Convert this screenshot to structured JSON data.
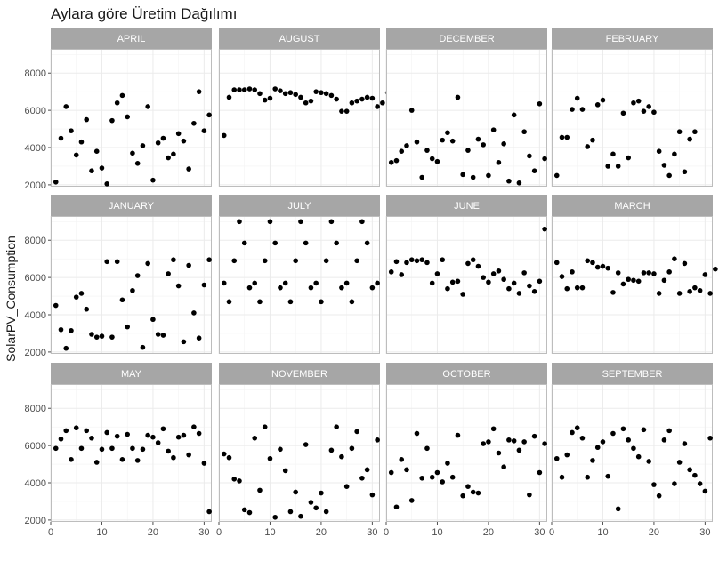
{
  "chart_data": {
    "type": "scatter",
    "title": "Aylara göre Üretim Dağılımı",
    "xlabel": "",
    "ylabel": "SolarPV_Consumption",
    "xlim": [
      0,
      31.5
    ],
    "ylim": [
      1900,
      9300
    ],
    "xticks": [
      0,
      10,
      20,
      30
    ],
    "yticks": [
      2000,
      4000,
      6000,
      8000
    ],
    "grid": true,
    "colors": {
      "strip": "#a6a6a6",
      "panel_border": "#bdbdbd",
      "grid": "#ebebeb",
      "point": "#000000"
    },
    "panels": [
      {
        "name": "APRIL",
        "values": [
          2150,
          4500,
          6200,
          4900,
          3600,
          4300,
          5500,
          2750,
          3800,
          2900,
          2050,
          5450,
          6400,
          6800,
          5650,
          3700,
          3150,
          4100,
          6200,
          2250,
          4250,
          4500,
          3450,
          3650,
          4750,
          4350,
          2850,
          5300,
          7000,
          4900,
          5750
        ]
      },
      {
        "name": "AUGUST",
        "values": [
          4650,
          6700,
          7100,
          7100,
          7100,
          7150,
          7100,
          6900,
          6550,
          6650,
          7150,
          7050,
          6900,
          6950,
          6850,
          6700,
          6400,
          6500,
          7000,
          6950,
          6900,
          6800,
          6600,
          5950,
          5950,
          6400,
          6500,
          6600,
          6700,
          6650,
          6200,
          6400,
          6950
        ]
      },
      {
        "name": "DECEMBER",
        "values": [
          3200,
          3300,
          3800,
          4100,
          6000,
          4300,
          2400,
          3850,
          3400,
          3250,
          4400,
          4800,
          4350,
          6700,
          2550,
          3850,
          2400,
          4450,
          4150,
          2500,
          4950,
          3200,
          4200,
          2200,
          5750,
          2100,
          4850,
          3550,
          2750,
          6350,
          3400
        ]
      },
      {
        "name": "FEBRUARY",
        "values": [
          2500,
          4550,
          4550,
          6050,
          6650,
          6050,
          4050,
          4400,
          6300,
          6550,
          3000,
          3650,
          3000,
          5850,
          3450,
          6400,
          6500,
          5950,
          6200,
          5900,
          3800,
          3050,
          2500,
          3650,
          4850,
          2700,
          4450,
          4850
        ]
      },
      {
        "name": "JANUARY",
        "values": [
          4500,
          3200,
          2200,
          3150,
          4950,
          5150,
          4300,
          2950,
          2800,
          2850,
          6850,
          2800,
          6850,
          4800,
          3350,
          5300,
          6100,
          2250,
          6750,
          3750,
          2950,
          2900,
          6200,
          6950,
          5550,
          2550,
          6650,
          4100,
          2750,
          5600,
          6950
        ]
      },
      {
        "name": "JULY",
        "values": [
          5700,
          4700,
          6900,
          9000,
          7850,
          5450,
          5700,
          4700,
          6900,
          9000,
          7850,
          5450,
          5700,
          4700,
          6900,
          9000,
          7850,
          5450,
          5700,
          4700,
          6900,
          9000,
          7850,
          5450,
          5700,
          4700,
          6900,
          9000,
          7850,
          5450,
          5700
        ]
      },
      {
        "name": "JUNE",
        "values": [
          6300,
          6850,
          6150,
          6800,
          6950,
          6900,
          6950,
          6800,
          5700,
          6200,
          6950,
          5400,
          5750,
          5800,
          5100,
          6750,
          6950,
          6600,
          6000,
          5750,
          6200,
          6350,
          5900,
          5400,
          5700,
          5150,
          6250,
          5550,
          5250,
          5800,
          8600
        ]
      },
      {
        "name": "MARCH",
        "values": [
          6800,
          6050,
          5400,
          6300,
          5450,
          5450,
          6900,
          6800,
          6550,
          6600,
          6500,
          5200,
          6250,
          5650,
          5900,
          5850,
          5800,
          6250,
          6250,
          6200,
          5150,
          5850,
          6300,
          7000,
          5150,
          6750,
          5250,
          5450,
          5300,
          6150,
          5150,
          6450
        ]
      },
      {
        "name": "MAY",
        "values": [
          5850,
          6350,
          6800,
          5250,
          6950,
          5850,
          6800,
          6400,
          5100,
          5800,
          6700,
          5850,
          6500,
          5250,
          6600,
          5850,
          5200,
          5800,
          6550,
          6450,
          6150,
          6900,
          5700,
          5350,
          6450,
          6550,
          5500,
          7000,
          6650,
          5050,
          2450
        ]
      },
      {
        "name": "NOVEMBER",
        "values": [
          5550,
          5350,
          4200,
          4100,
          2550,
          2400,
          6400,
          3600,
          7000,
          5300,
          2150,
          5800,
          4650,
          2450,
          3500,
          2200,
          6050,
          2950,
          2650,
          3450,
          2450,
          5750,
          7000,
          5400,
          3800,
          5850,
          6750,
          4250,
          4700,
          3350,
          6300
        ]
      },
      {
        "name": "OCTOBER",
        "values": [
          4550,
          2700,
          5250,
          4700,
          3050,
          6650,
          4250,
          5850,
          4300,
          4550,
          4050,
          5050,
          4300,
          6550,
          3300,
          3800,
          3500,
          3450,
          6100,
          6200,
          6900,
          5600,
          4850,
          6300,
          6250,
          5750,
          6200,
          3350,
          6500,
          4550,
          6100
        ]
      },
      {
        "name": "SEPTEMBER",
        "values": [
          5300,
          4300,
          5500,
          6700,
          6950,
          6400,
          4300,
          5200,
          5900,
          6200,
          4350,
          6650,
          2600,
          6900,
          6300,
          5850,
          5400,
          6850,
          5150,
          3900,
          3300,
          6300,
          6800,
          3950,
          5100,
          6100,
          4700,
          4400,
          3950,
          3550,
          6400
        ]
      }
    ]
  }
}
